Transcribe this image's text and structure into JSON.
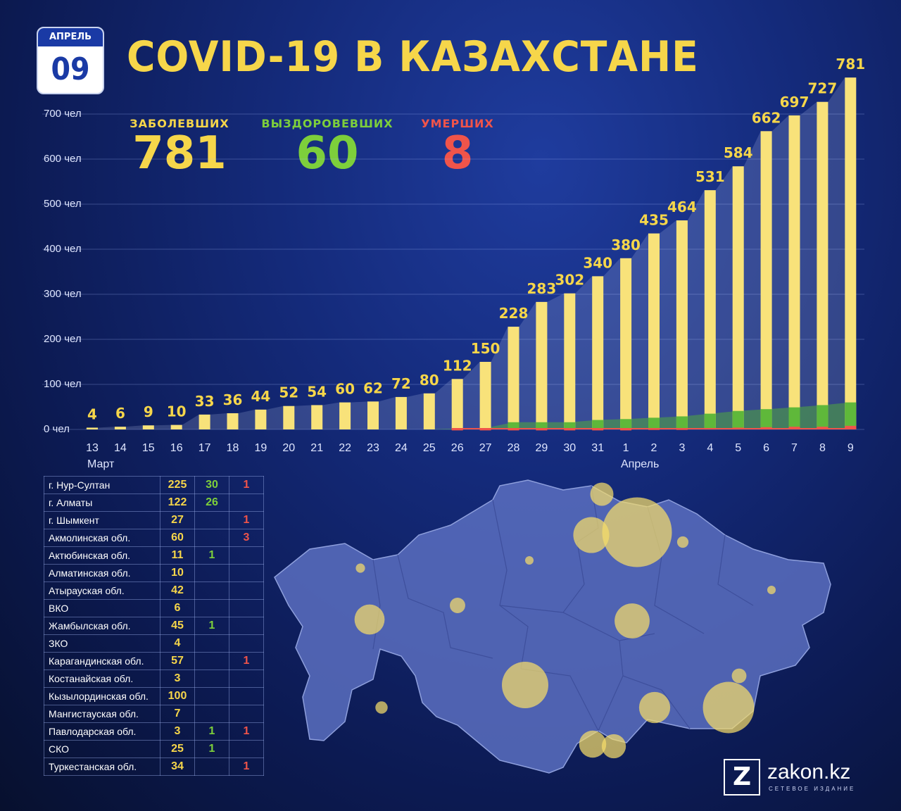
{
  "header": {
    "month": "АПРЕЛЬ",
    "day": "09",
    "title": "COVID-19 В КАЗАХСТАНЕ"
  },
  "stats": {
    "cases_label": "ЗАБОЛЕВШИХ",
    "cases_value": "781",
    "recovered_label": "ВЫЗДОРОВЕВШИХ",
    "recovered_value": "60",
    "deaths_label": "УМЕРШИХ",
    "deaths_value": "8"
  },
  "colors": {
    "yellow": "#f6d64a",
    "green": "#7dcf3b",
    "red": "#f0544a",
    "bar": "#f8e27a"
  },
  "chart_data": {
    "type": "bar",
    "categories": [
      "13",
      "14",
      "15",
      "16",
      "17",
      "18",
      "19",
      "20",
      "21",
      "22",
      "23",
      "24",
      "25",
      "26",
      "27",
      "28",
      "29",
      "30",
      "31",
      "1",
      "2",
      "3",
      "4",
      "5",
      "6",
      "7",
      "8",
      "9"
    ],
    "series": [
      {
        "values": [
          4,
          6,
          9,
          10,
          33,
          36,
          44,
          52,
          54,
          60,
          62,
          72,
          80,
          112,
          150,
          228,
          283,
          302,
          340,
          380,
          435,
          464,
          531,
          584,
          662,
          697,
          727,
          781
        ]
      },
      {
        "values": [
          0,
          0,
          0,
          0,
          0,
          0,
          0,
          0,
          0,
          0,
          0,
          0,
          0,
          2,
          3,
          16,
          16,
          16,
          21,
          23,
          26,
          29,
          35,
          41,
          45,
          49,
          54,
          60
        ]
      },
      {
        "values": [
          0,
          0,
          0,
          0,
          0,
          0,
          0,
          0,
          0,
          0,
          0,
          0,
          0,
          1,
          1,
          1,
          1,
          1,
          1,
          1,
          2,
          2,
          3,
          4,
          5,
          6,
          6,
          8
        ]
      }
    ],
    "y_ticks": [
      "0 чел",
      "100 чел",
      "200 чел",
      "300 чел",
      "400 чел",
      "500 чел",
      "600 чел",
      "700 чел"
    ],
    "ylim": [
      0,
      800
    ],
    "grid": true,
    "month_labels": [
      "Март",
      "Апрель"
    ]
  },
  "regions": [
    {
      "name": "г. Нур-Султан",
      "cases": "225",
      "recovered": "30",
      "deaths": "1"
    },
    {
      "name": "г. Алматы",
      "cases": "122",
      "recovered": "26",
      "deaths": ""
    },
    {
      "name": "г. Шымкент",
      "cases": "27",
      "recovered": "",
      "deaths": "1"
    },
    {
      "name": "Акмолинская обл.",
      "cases": "60",
      "recovered": "",
      "deaths": "3"
    },
    {
      "name": "Актюбинская обл.",
      "cases": "11",
      "recovered": "1",
      "deaths": ""
    },
    {
      "name": "Алматинская обл.",
      "cases": "10",
      "recovered": "",
      "deaths": ""
    },
    {
      "name": "Атырауская обл.",
      "cases": "42",
      "recovered": "",
      "deaths": ""
    },
    {
      "name": "ВКО",
      "cases": "6",
      "recovered": "",
      "deaths": ""
    },
    {
      "name": "Жамбылская обл.",
      "cases": "45",
      "recovered": "1",
      "deaths": ""
    },
    {
      "name": "ЗКО",
      "cases": "4",
      "recovered": "",
      "deaths": ""
    },
    {
      "name": "Карагандинская обл.",
      "cases": "57",
      "recovered": "",
      "deaths": "1"
    },
    {
      "name": "Костанайская обл.",
      "cases": "3",
      "recovered": "",
      "deaths": ""
    },
    {
      "name": "Кызылординская обл.",
      "cases": "100",
      "recovered": "",
      "deaths": ""
    },
    {
      "name": "Мангистауская обл.",
      "cases": "7",
      "recovered": "",
      "deaths": ""
    },
    {
      "name": "Павлодарская обл.",
      "cases": "3",
      "recovered": "1",
      "deaths": "1"
    },
    {
      "name": "СКО",
      "cases": "25",
      "recovered": "1",
      "deaths": ""
    },
    {
      "name": "Туркестанская обл.",
      "cases": "34",
      "recovered": "",
      "deaths": "1"
    }
  ],
  "map_regions": [
    {
      "region": "г. Нур-Султан",
      "cases": 225
    },
    {
      "region": "г. Алматы",
      "cases": 122
    },
    {
      "region": "г. Шымкент",
      "cases": 27
    },
    {
      "region": "Акмолинская обл.",
      "cases": 60
    },
    {
      "region": "Актюбинская обл.",
      "cases": 11
    },
    {
      "region": "Алматинская обл.",
      "cases": 10
    },
    {
      "region": "Атырауская обл.",
      "cases": 42
    },
    {
      "region": "ВКО",
      "cases": 6
    },
    {
      "region": "Жамбылская обл.",
      "cases": 45
    },
    {
      "region": "ЗКО",
      "cases": 4
    },
    {
      "region": "Карагандинская обл.",
      "cases": 57
    },
    {
      "region": "Костанайская обл.",
      "cases": 3
    },
    {
      "region": "Кызылординская обл.",
      "cases": 100
    },
    {
      "region": "Мангистауская обл.",
      "cases": 7
    },
    {
      "region": "Павлодарская обл.",
      "cases": 3
    },
    {
      "region": "СКО",
      "cases": 25
    },
    {
      "region": "Туркестанская обл.",
      "cases": 34
    }
  ],
  "logo": {
    "letter": "Z",
    "name": "zakon.kz",
    "subtitle": "СЕТЕВОЕ ИЗДАНИЕ"
  }
}
